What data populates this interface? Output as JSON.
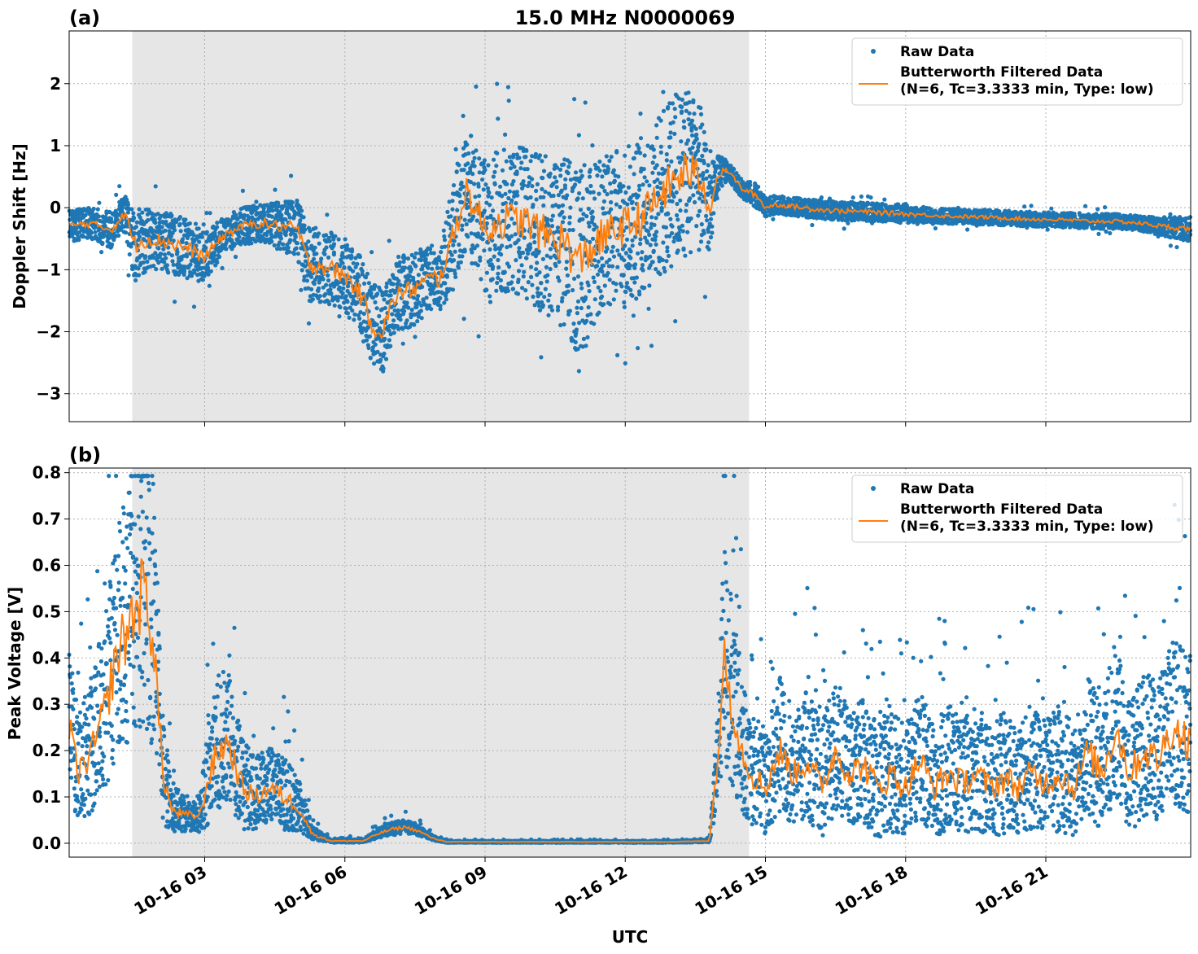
{
  "figure": {
    "title": "15.0 MHz N0000069",
    "xlabel": "UTC"
  },
  "colors": {
    "raw": "#1f77b4",
    "filtered": "#ff7f0e",
    "night_shade": "#e6e6e6",
    "grid": "#b0b0b0"
  },
  "x_axis": {
    "range_hours": [
      0.1,
      24.1
    ],
    "ticks_hours": [
      3,
      6,
      9,
      12,
      15,
      18,
      21
    ],
    "tick_labels": [
      "10-16 03",
      "10-16 06",
      "10-16 09",
      "10-16 12",
      "10-16 15",
      "10-16 18",
      "10-16 21"
    ]
  },
  "shaded_interval_hours": [
    1.45,
    14.65
  ],
  "chart_data": [
    {
      "panel_label": "(a)",
      "type": "scatter",
      "ylabel": "Doppler Shift [Hz]",
      "ylim": [
        -3.45,
        2.85
      ],
      "yticks": [
        -3,
        -2,
        -1,
        0,
        1,
        2
      ],
      "ytick_labels": [
        "−3",
        "−2",
        "−1",
        "0",
        "1",
        "2"
      ],
      "grid": true,
      "legend": "top-right",
      "series": [
        {
          "name": "Raw Data",
          "kind": "points"
        },
        {
          "name": "Butterworth Filtered Data",
          "subtitle": "(N=6, Tc=3.3333 min, Type: low)",
          "kind": "line"
        }
      ],
      "filtered_x_hours": [
        0.1,
        0.5,
        1.0,
        1.3,
        1.5,
        1.8,
        2.2,
        2.6,
        3.0,
        3.4,
        3.8,
        4.2,
        4.6,
        5.0,
        5.2,
        5.6,
        6.0,
        6.3,
        6.6,
        6.8,
        7.1,
        7.5,
        7.9,
        8.0,
        8.3,
        8.6,
        9.0,
        9.4,
        9.8,
        10.3,
        10.7,
        11.0,
        11.4,
        11.8,
        12.2,
        12.6,
        13.0,
        13.3,
        13.6,
        13.8,
        14.0,
        14.2,
        14.5,
        14.8,
        15.0,
        15.2,
        15.6,
        16.0,
        16.5,
        17.0,
        17.5,
        18.0,
        18.5,
        19.0,
        19.5,
        20.0,
        20.5,
        21.0,
        21.5,
        22.0,
        22.5,
        23.0,
        23.5,
        24.1
      ],
      "filtered_y_hz": [
        -0.3,
        -0.25,
        -0.35,
        -0.1,
        -0.6,
        -0.5,
        -0.55,
        -0.65,
        -0.8,
        -0.45,
        -0.3,
        -0.25,
        -0.3,
        -0.35,
        -0.9,
        -0.95,
        -1.1,
        -1.35,
        -1.9,
        -2.0,
        -1.4,
        -1.3,
        -1.1,
        -1.2,
        -0.5,
        0.3,
        -0.35,
        -0.2,
        -0.2,
        -0.45,
        -0.55,
        -0.9,
        -0.55,
        -0.35,
        -0.25,
        0.05,
        0.4,
        0.6,
        0.5,
        0.0,
        0.55,
        0.6,
        0.3,
        0.2,
        0.0,
        0.05,
        0.02,
        -0.02,
        -0.05,
        -0.06,
        -0.08,
        -0.1,
        -0.12,
        -0.14,
        -0.15,
        -0.16,
        -0.18,
        -0.19,
        -0.2,
        -0.22,
        -0.22,
        -0.25,
        -0.3,
        -0.35
      ],
      "raw_spread_hz": [
        0.25,
        0.25,
        0.3,
        0.3,
        0.6,
        0.5,
        0.5,
        0.5,
        0.4,
        0.3,
        0.3,
        0.3,
        0.4,
        0.5,
        0.6,
        0.6,
        0.6,
        0.6,
        0.7,
        0.7,
        0.6,
        0.6,
        0.5,
        0.5,
        0.9,
        1.0,
        1.1,
        1.2,
        1.2,
        1.3,
        1.4,
        1.5,
        1.3,
        1.3,
        1.3,
        1.3,
        1.4,
        1.4,
        1.2,
        0.7,
        0.3,
        0.15,
        0.15,
        0.2,
        0.15,
        0.15,
        0.15,
        0.15,
        0.15,
        0.15,
        0.15,
        0.15,
        0.12,
        0.12,
        0.12,
        0.12,
        0.12,
        0.12,
        0.12,
        0.12,
        0.12,
        0.12,
        0.15,
        0.2
      ]
    },
    {
      "panel_label": "(b)",
      "type": "scatter",
      "ylabel": "Peak Voltage [V]",
      "ylim": [
        -0.03,
        0.81
      ],
      "yticks": [
        0.0,
        0.1,
        0.2,
        0.3,
        0.4,
        0.5,
        0.6,
        0.7,
        0.8
      ],
      "ytick_labels": [
        "0.0",
        "0.1",
        "0.2",
        "0.3",
        "0.4",
        "0.5",
        "0.6",
        "0.7",
        "0.8"
      ],
      "grid": true,
      "legend": "top-right",
      "series": [
        {
          "name": "Raw Data",
          "kind": "points"
        },
        {
          "name": "Butterworth Filtered Data",
          "subtitle": "(N=6, Tc=3.3333 min, Type: low)",
          "kind": "line"
        }
      ],
      "filtered_x_hours": [
        0.1,
        0.3,
        0.6,
        0.9,
        1.1,
        1.3,
        1.5,
        1.7,
        1.9,
        2.1,
        2.3,
        2.6,
        2.9,
        3.1,
        3.3,
        3.5,
        3.8,
        4.1,
        4.4,
        4.7,
        5.0,
        5.3,
        5.7,
        6.1,
        6.4,
        6.7,
        7.0,
        7.3,
        7.6,
        7.9,
        8.2,
        9.0,
        10.0,
        11.0,
        12.0,
        13.0,
        13.8,
        14.0,
        14.1,
        14.3,
        14.5,
        14.7,
        15.0,
        15.3,
        15.6,
        15.9,
        16.2,
        16.5,
        16.8,
        17.1,
        17.4,
        17.7,
        18.0,
        18.3,
        18.6,
        18.9,
        19.2,
        19.5,
        19.8,
        20.1,
        20.4,
        20.7,
        21.0,
        21.3,
        21.6,
        21.9,
        22.2,
        22.5,
        22.8,
        23.1,
        23.4,
        23.7,
        24.1
      ],
      "filtered_y_v": [
        0.25,
        0.15,
        0.2,
        0.3,
        0.4,
        0.45,
        0.5,
        0.55,
        0.45,
        0.15,
        0.07,
        0.06,
        0.06,
        0.15,
        0.2,
        0.22,
        0.12,
        0.1,
        0.12,
        0.1,
        0.08,
        0.02,
        0.005,
        0.005,
        0.005,
        0.02,
        0.03,
        0.035,
        0.025,
        0.01,
        0.003,
        0.003,
        0.003,
        0.003,
        0.003,
        0.003,
        0.005,
        0.2,
        0.4,
        0.3,
        0.2,
        0.15,
        0.12,
        0.2,
        0.15,
        0.18,
        0.12,
        0.2,
        0.15,
        0.17,
        0.12,
        0.15,
        0.12,
        0.18,
        0.12,
        0.15,
        0.13,
        0.15,
        0.12,
        0.14,
        0.12,
        0.15,
        0.13,
        0.15,
        0.12,
        0.2,
        0.15,
        0.25,
        0.15,
        0.2,
        0.18,
        0.25,
        0.22
      ],
      "raw_spread_v": [
        0.15,
        0.12,
        0.15,
        0.2,
        0.25,
        0.3,
        0.3,
        0.35,
        0.3,
        0.12,
        0.05,
        0.04,
        0.04,
        0.12,
        0.15,
        0.15,
        0.1,
        0.08,
        0.08,
        0.08,
        0.06,
        0.015,
        0.004,
        0.004,
        0.004,
        0.01,
        0.015,
        0.015,
        0.01,
        0.005,
        0.002,
        0.002,
        0.002,
        0.002,
        0.002,
        0.002,
        0.003,
        0.12,
        0.25,
        0.2,
        0.15,
        0.12,
        0.12,
        0.15,
        0.12,
        0.14,
        0.12,
        0.15,
        0.12,
        0.14,
        0.12,
        0.14,
        0.12,
        0.14,
        0.12,
        0.14,
        0.12,
        0.14,
        0.12,
        0.14,
        0.12,
        0.14,
        0.12,
        0.14,
        0.12,
        0.15,
        0.14,
        0.18,
        0.14,
        0.16,
        0.15,
        0.18,
        0.18
      ]
    }
  ]
}
